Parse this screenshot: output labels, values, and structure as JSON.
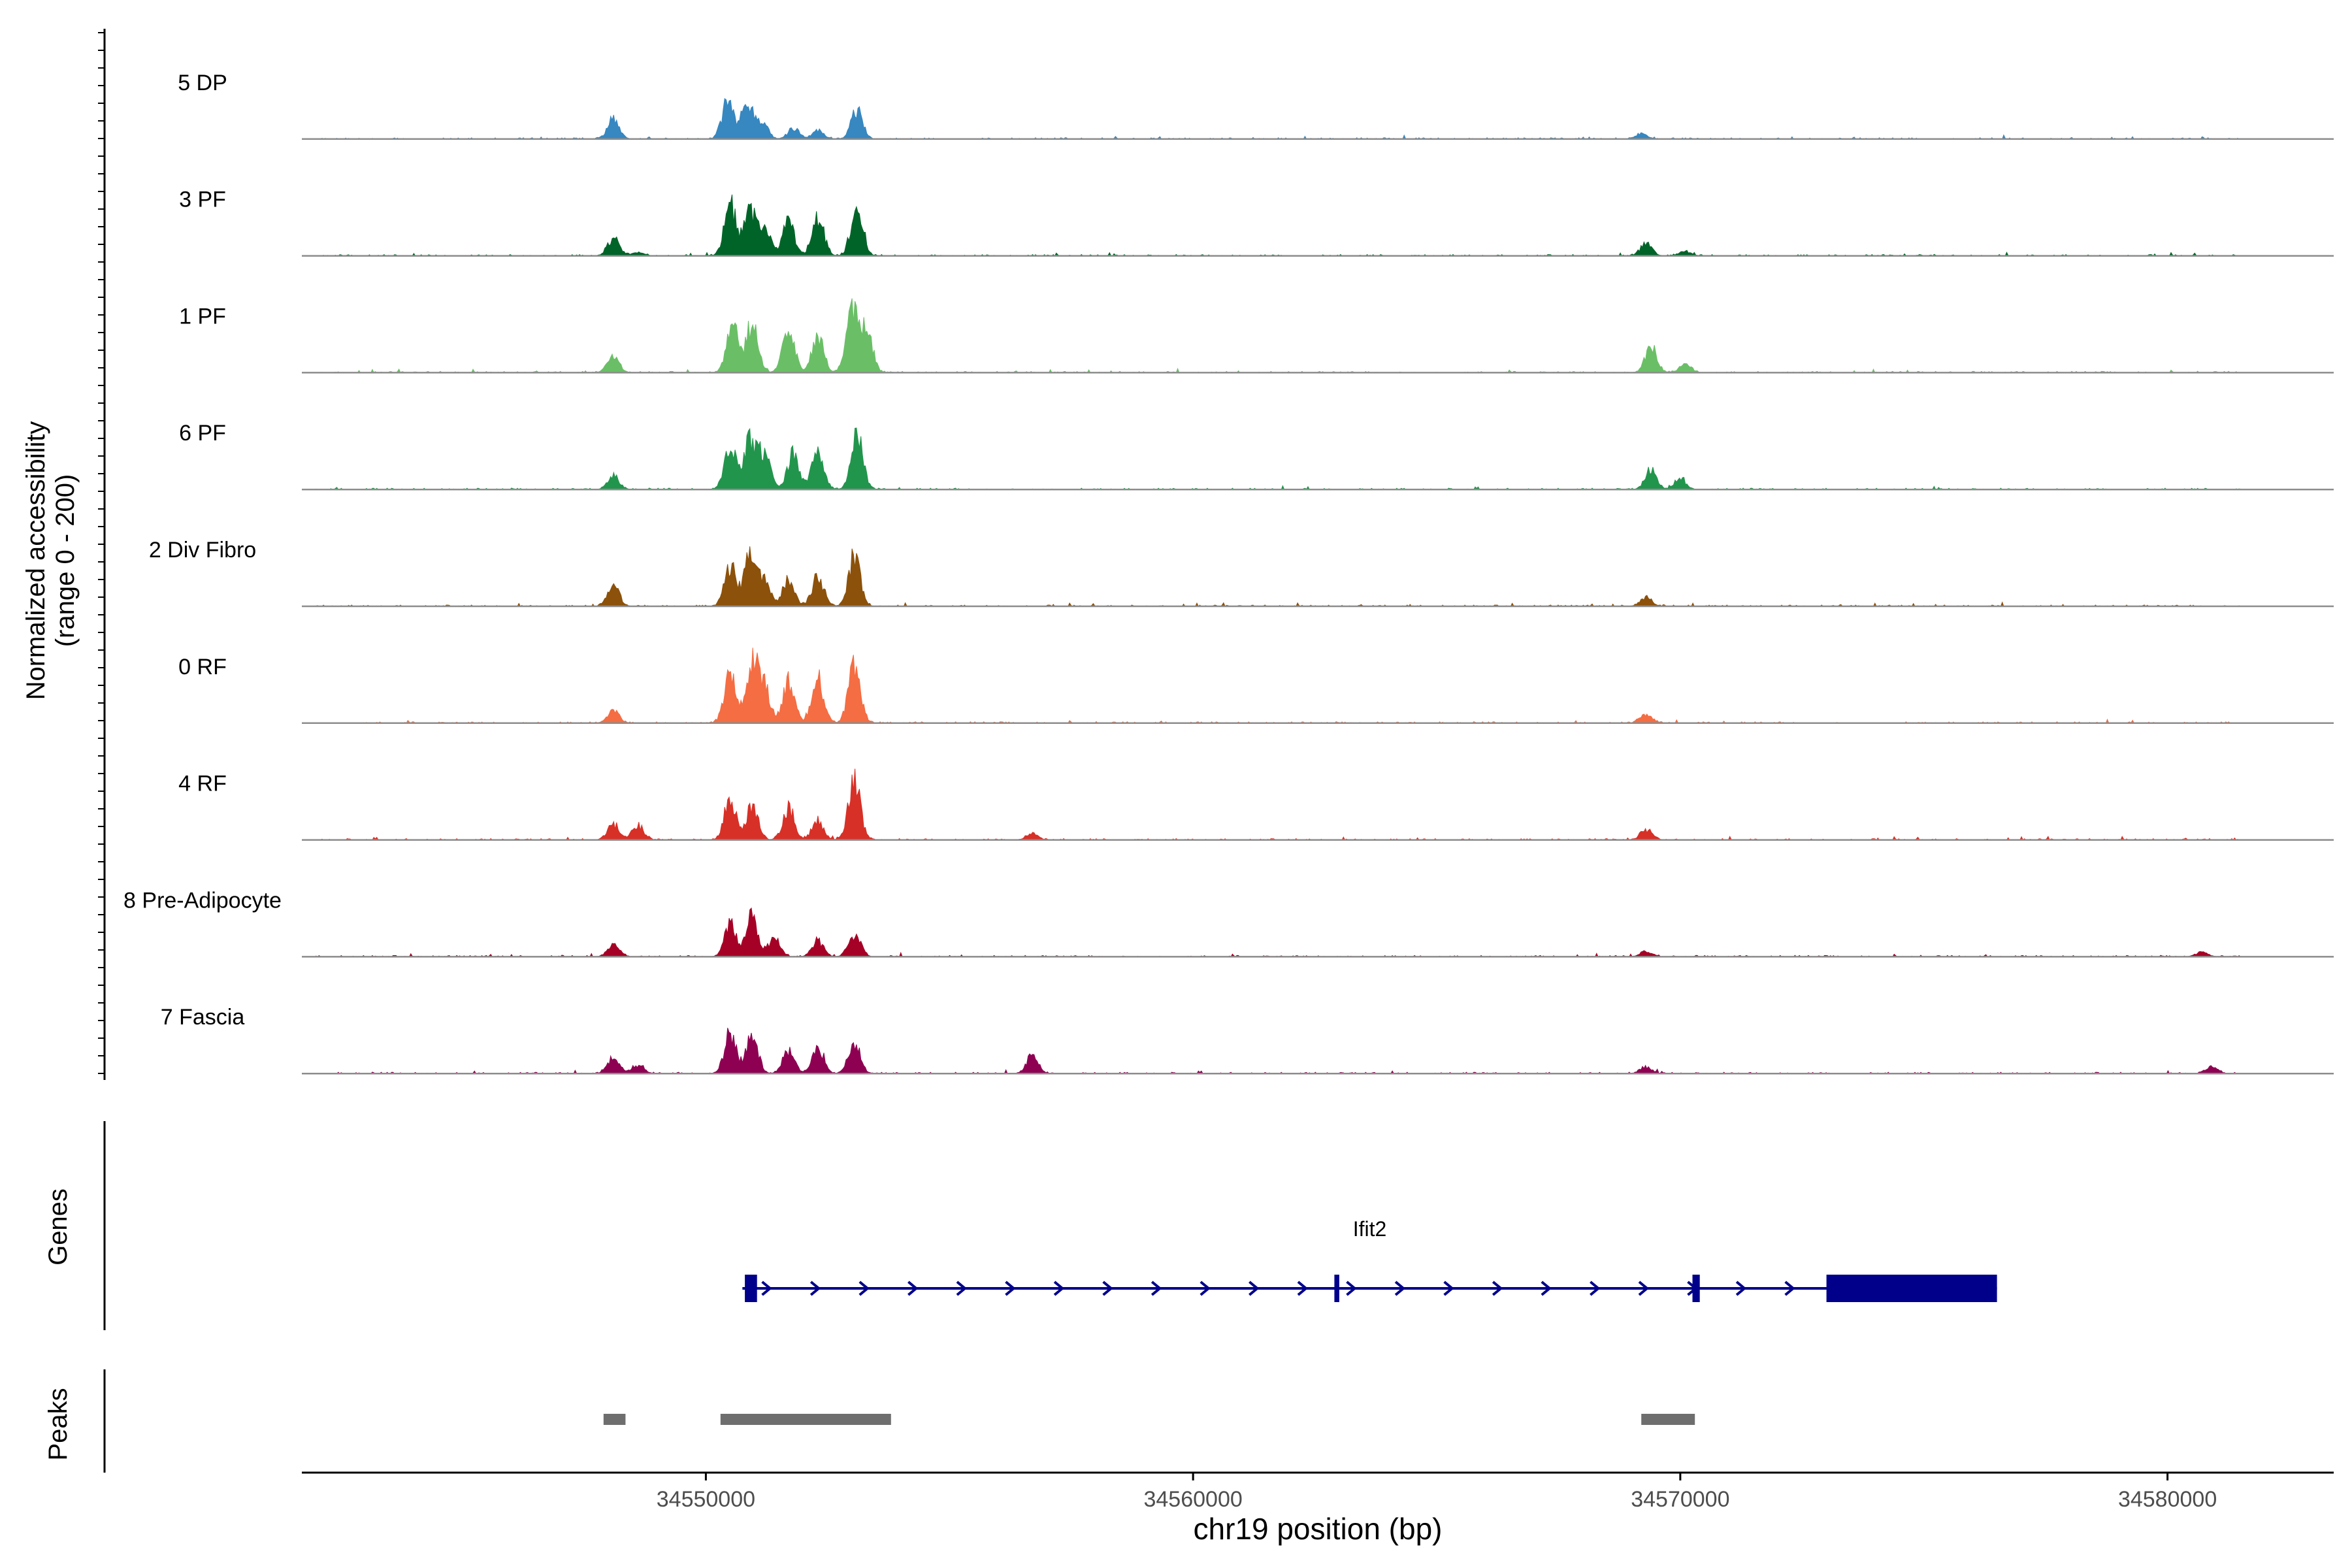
{
  "chart_data": {
    "type": "area",
    "title": "",
    "ylabel": [
      "Normalized accessibility",
      "(range 0 - 200)"
    ],
    "xlabel": "chr19 position (bp)",
    "xlim": [
      34542000,
      34583000
    ],
    "ylim": [
      0,
      200
    ],
    "x_ticks": [
      34550000,
      34560000,
      34570000,
      34580000
    ],
    "x_tick_labels": [
      "34550000",
      "34560000",
      "34570000",
      "34580000"
    ],
    "tracks": [
      {
        "name": "5 DP",
        "color": "#3787c0",
        "peaks": [
          [
            34548100,
            0.22
          ],
          [
            34550450,
            0.42
          ],
          [
            34550850,
            0.38
          ],
          [
            34551150,
            0.2
          ],
          [
            34551800,
            0.12
          ],
          [
            34552300,
            0.1
          ],
          [
            34553100,
            0.32
          ],
          [
            34569200,
            0.06
          ]
        ]
      },
      {
        "name": "3 PF",
        "color": "#006428",
        "peaks": [
          [
            34548100,
            0.2
          ],
          [
            34548600,
            0.04
          ],
          [
            34550500,
            0.58
          ],
          [
            34550900,
            0.5
          ],
          [
            34551200,
            0.32
          ],
          [
            34551700,
            0.38
          ],
          [
            34552300,
            0.44
          ],
          [
            34553100,
            0.6
          ],
          [
            34569300,
            0.14
          ],
          [
            34570100,
            0.05
          ]
        ]
      },
      {
        "name": "1 PF",
        "color": "#6abf66",
        "peaks": [
          [
            34548100,
            0.18
          ],
          [
            34550550,
            0.52
          ],
          [
            34550950,
            0.56
          ],
          [
            34551700,
            0.5
          ],
          [
            34552300,
            0.4
          ],
          [
            34553000,
            0.72
          ],
          [
            34553300,
            0.5
          ],
          [
            34569400,
            0.3
          ],
          [
            34570100,
            0.1
          ]
        ]
      },
      {
        "name": "6 PF",
        "color": "#22954d",
        "peaks": [
          [
            34548100,
            0.16
          ],
          [
            34550500,
            0.48
          ],
          [
            34550900,
            0.55
          ],
          [
            34551200,
            0.4
          ],
          [
            34551800,
            0.4
          ],
          [
            34552300,
            0.42
          ],
          [
            34553100,
            0.64
          ],
          [
            34569400,
            0.22
          ],
          [
            34570000,
            0.12
          ]
        ]
      },
      {
        "name": "2 Div Fibro",
        "color": "#8c510a",
        "peaks": [
          [
            34548100,
            0.24
          ],
          [
            34550500,
            0.44
          ],
          [
            34550900,
            0.56
          ],
          [
            34551200,
            0.3
          ],
          [
            34551700,
            0.3
          ],
          [
            34552300,
            0.34
          ],
          [
            34553050,
            0.56
          ],
          [
            34569300,
            0.1
          ]
        ]
      },
      {
        "name": "0 RF",
        "color": "#f46d43",
        "peaks": [
          [
            34548100,
            0.14
          ],
          [
            34550500,
            0.54
          ],
          [
            34550950,
            0.68
          ],
          [
            34551200,
            0.4
          ],
          [
            34551700,
            0.48
          ],
          [
            34552300,
            0.5
          ],
          [
            34553050,
            0.72
          ],
          [
            34569300,
            0.1
          ]
        ]
      },
      {
        "name": "4 RF",
        "color": "#d73027",
        "peaks": [
          [
            34548100,
            0.18
          ],
          [
            34548600,
            0.16
          ],
          [
            34550500,
            0.46
          ],
          [
            34550950,
            0.38
          ],
          [
            34551700,
            0.36
          ],
          [
            34552300,
            0.22
          ],
          [
            34553050,
            0.66
          ],
          [
            34556700,
            0.08
          ],
          [
            34569300,
            0.12
          ]
        ]
      },
      {
        "name": "8 Pre-Adipocyte",
        "color": "#a50026",
        "peaks": [
          [
            34548100,
            0.14
          ],
          [
            34550500,
            0.36
          ],
          [
            34550950,
            0.46
          ],
          [
            34551400,
            0.2
          ],
          [
            34552300,
            0.18
          ],
          [
            34553050,
            0.26
          ],
          [
            34569300,
            0.06
          ],
          [
            34580700,
            0.05
          ]
        ]
      },
      {
        "name": "7 Fascia",
        "color": "#8e0152",
        "peaks": [
          [
            34548100,
            0.18
          ],
          [
            34548600,
            0.1
          ],
          [
            34550500,
            0.46
          ],
          [
            34550950,
            0.44
          ],
          [
            34551700,
            0.26
          ],
          [
            34552300,
            0.3
          ],
          [
            34553050,
            0.36
          ],
          [
            34556700,
            0.2
          ],
          [
            34569300,
            0.08
          ],
          [
            34580900,
            0.08
          ]
        ]
      }
    ],
    "genes": {
      "label": "Genes",
      "gene_name": "Ifit2",
      "color": "#00008b",
      "start": 34550750,
      "end": 34576500,
      "strand": "+",
      "exons": [
        [
          34550800,
          34551050
        ],
        [
          34562900,
          34563000
        ],
        [
          34570250,
          34570400
        ],
        [
          34573000,
          34576500
        ]
      ]
    },
    "peaks_track": {
      "label": "Peaks",
      "color": "#6e6e6e",
      "regions": [
        [
          34547900,
          34548350
        ],
        [
          34550300,
          34553800
        ],
        [
          34569200,
          34570300
        ]
      ]
    }
  }
}
